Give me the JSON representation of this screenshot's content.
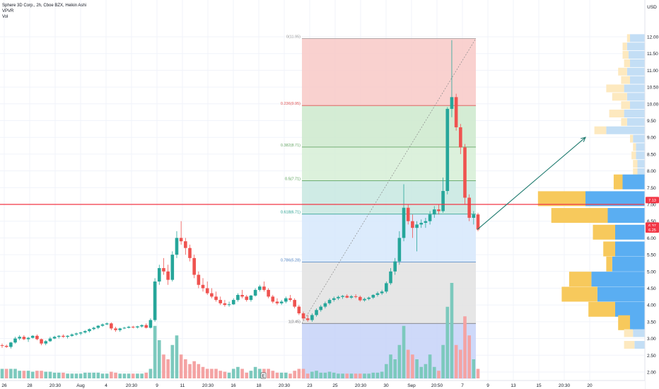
{
  "header": {
    "title": "Sphere 3D Corp., 2h, Cboe BZX, Heikin Ashi",
    "indicator1": "VPVR",
    "indicator2": "Vol"
  },
  "price_axis": {
    "currency": "USD",
    "ticks": [
      "12.00",
      "11.50",
      "11.00",
      "10.50",
      "10.00",
      "9.50",
      "9.00",
      "8.50",
      "8.00",
      "7.50",
      "7.00",
      "6.50",
      "6.00",
      "5.50",
      "5.00",
      "4.50",
      "4.00",
      "3.50",
      "3.00",
      "2.50",
      "2.00"
    ],
    "badges": [
      {
        "label": "7.13",
        "value": 7.13,
        "color": "#f23645"
      },
      {
        "label": "6.37",
        "value": 6.37,
        "color": "#f23645"
      },
      {
        "label": "6.25",
        "value": 6.25,
        "color": "#f23645"
      }
    ]
  },
  "time_axis": {
    "ticks": [
      "26",
      "28",
      "20:30",
      "Aug",
      "4",
      "20:30",
      "9",
      "11",
      "20:30",
      "16",
      "18",
      "20:30",
      "23",
      "25",
      "20:30",
      "30",
      "Sep",
      "20:50",
      "7",
      "9",
      "13",
      "15",
      "20:30",
      "20"
    ]
  },
  "colors": {
    "up": "#26a69a",
    "down": "#ef5350",
    "horizontal_line": "#f23645",
    "arrow": "#1e7a6e",
    "vp_up": "#5aaef2",
    "vp_down": "#f7c95c",
    "vp_up_light": "#c3def5",
    "vp_down_light": "#fde9bf"
  },
  "fib": {
    "levels": [
      {
        "label": "0(11.95)",
        "value": 11.95,
        "color": "#9b9b9b"
      },
      {
        "label": "0.236(9.95)",
        "value": 9.95,
        "color": "#e05252"
      },
      {
        "label": "0.382(8.71)",
        "value": 8.71,
        "color": "#66a666"
      },
      {
        "label": "0.5(7.71)",
        "value": 7.71,
        "color": "#4d9a4d"
      },
      {
        "label": "0.618(6.71)",
        "value": 6.71,
        "color": "#1e9a8a"
      },
      {
        "label": "0.786(5.28)",
        "value": 5.28,
        "color": "#4a7fc1"
      },
      {
        "label": "1(3.45)",
        "value": 3.45,
        "color": "#707070"
      }
    ],
    "zones": [
      {
        "from": 11.95,
        "to": 9.95,
        "color": "#f8c9c7"
      },
      {
        "from": 9.95,
        "to": 8.71,
        "color": "#cde9cd"
      },
      {
        "from": 8.71,
        "to": 7.71,
        "color": "#d6eed6"
      },
      {
        "from": 7.71,
        "to": 6.71,
        "color": "#c7e8e0"
      },
      {
        "from": 6.71,
        "to": 5.28,
        "color": "#d6e8fb"
      },
      {
        "from": 5.28,
        "to": 3.45,
        "color": "#e2e2e2"
      },
      {
        "from": 3.45,
        "to": 1.8,
        "color": "#c5d2f8"
      }
    ]
  },
  "chart_data": {
    "type": "candlestick",
    "title": "Sphere 3D Corp., 2h, Cboe BZX, Heikin Ashi",
    "yrange": [
      1.8,
      12.6
    ],
    "horizontal_line": 7.0,
    "candles": [
      [
        2.8,
        2.85,
        2.72,
        2.78
      ],
      [
        2.78,
        2.82,
        2.72,
        2.75
      ],
      [
        2.75,
        2.9,
        2.7,
        2.88
      ],
      [
        2.88,
        3.05,
        2.85,
        3.0
      ],
      [
        3.0,
        3.1,
        2.95,
        3.05
      ],
      [
        3.05,
        3.1,
        2.95,
        2.98
      ],
      [
        2.98,
        3.05,
        2.9,
        3.02
      ],
      [
        3.02,
        3.1,
        3.0,
        3.08
      ],
      [
        3.08,
        3.12,
        2.95,
        2.98
      ],
      [
        2.98,
        3.0,
        2.8,
        2.85
      ],
      [
        2.85,
        2.95,
        2.8,
        2.92
      ],
      [
        2.92,
        3.05,
        2.9,
        3.0
      ],
      [
        3.0,
        3.08,
        2.98,
        3.05
      ],
      [
        3.05,
        3.1,
        3.0,
        3.08
      ],
      [
        3.08,
        3.12,
        3.02,
        3.05
      ],
      [
        3.05,
        3.1,
        3.0,
        3.08
      ],
      [
        3.08,
        3.15,
        3.05,
        3.12
      ],
      [
        3.12,
        3.18,
        3.08,
        3.15
      ],
      [
        3.15,
        3.2,
        3.1,
        3.18
      ],
      [
        3.18,
        3.25,
        3.15,
        3.22
      ],
      [
        3.22,
        3.3,
        3.18,
        3.28
      ],
      [
        3.28,
        3.35,
        3.25,
        3.32
      ],
      [
        3.32,
        3.4,
        3.28,
        3.38
      ],
      [
        3.38,
        3.45,
        3.35,
        3.42
      ],
      [
        3.42,
        3.48,
        3.4,
        3.45
      ],
      [
        3.45,
        3.48,
        3.25,
        3.3
      ],
      [
        3.3,
        3.35,
        3.2,
        3.25
      ],
      [
        3.25,
        3.32,
        3.2,
        3.3
      ],
      [
        3.3,
        3.35,
        3.28,
        3.32
      ],
      [
        3.32,
        3.38,
        3.3,
        3.35
      ],
      [
        3.35,
        3.38,
        3.3,
        3.33
      ],
      [
        3.33,
        3.38,
        3.3,
        3.36
      ],
      [
        3.36,
        3.42,
        3.33,
        3.4
      ],
      [
        3.4,
        3.45,
        3.3,
        3.32
      ],
      [
        3.32,
        3.6,
        3.3,
        3.55
      ],
      [
        3.55,
        4.8,
        3.5,
        4.7
      ],
      [
        4.7,
        5.2,
        4.6,
        5.1
      ],
      [
        5.1,
        5.4,
        4.9,
        5.0
      ],
      [
        5.0,
        5.2,
        4.6,
        4.75
      ],
      [
        4.75,
        5.6,
        4.7,
        5.5
      ],
      [
        5.5,
        6.2,
        5.4,
        6.0
      ],
      [
        6.0,
        6.5,
        5.8,
        5.9
      ],
      [
        5.9,
        6.0,
        5.5,
        5.7
      ],
      [
        5.7,
        5.8,
        5.3,
        5.4
      ],
      [
        5.4,
        5.5,
        4.8,
        4.9
      ],
      [
        4.9,
        5.0,
        4.5,
        4.6
      ],
      [
        4.6,
        4.8,
        4.4,
        4.5
      ],
      [
        4.5,
        4.7,
        4.3,
        4.35
      ],
      [
        4.35,
        4.5,
        4.2,
        4.25
      ],
      [
        4.25,
        4.4,
        4.1,
        4.15
      ],
      [
        4.15,
        4.25,
        4.0,
        4.05
      ],
      [
        4.05,
        4.15,
        3.95,
        4.0
      ],
      [
        4.0,
        4.1,
        3.95,
        4.02
      ],
      [
        4.02,
        4.2,
        4.0,
        4.15
      ],
      [
        4.15,
        4.35,
        4.1,
        4.3
      ],
      [
        4.3,
        4.45,
        4.2,
        4.25
      ],
      [
        4.25,
        4.3,
        4.1,
        4.15
      ],
      [
        4.15,
        4.3,
        4.1,
        4.28
      ],
      [
        4.28,
        4.5,
        4.25,
        4.45
      ],
      [
        4.45,
        4.6,
        4.4,
        4.55
      ],
      [
        4.55,
        4.7,
        4.4,
        4.45
      ],
      [
        4.45,
        4.5,
        4.2,
        4.25
      ],
      [
        4.25,
        4.3,
        4.05,
        4.1
      ],
      [
        4.1,
        4.2,
        4.0,
        4.05
      ],
      [
        4.05,
        4.15,
        4.0,
        4.1
      ],
      [
        4.1,
        4.25,
        4.05,
        4.2
      ],
      [
        4.2,
        4.3,
        4.1,
        4.15
      ],
      [
        4.15,
        4.2,
        3.9,
        3.95
      ],
      [
        3.95,
        4.0,
        3.7,
        3.75
      ],
      [
        3.75,
        3.8,
        3.55,
        3.6
      ],
      [
        3.6,
        3.7,
        3.5,
        3.55
      ],
      [
        3.55,
        3.75,
        3.5,
        3.7
      ],
      [
        3.7,
        3.9,
        3.65,
        3.85
      ],
      [
        3.85,
        4.0,
        3.8,
        3.95
      ],
      [
        3.95,
        4.1,
        3.9,
        4.05
      ],
      [
        4.05,
        4.2,
        4.0,
        4.15
      ],
      [
        4.15,
        4.25,
        4.1,
        4.2
      ],
      [
        4.2,
        4.28,
        4.15,
        4.24
      ],
      [
        4.24,
        4.3,
        4.18,
        4.27
      ],
      [
        4.27,
        4.32,
        4.2,
        4.22
      ],
      [
        4.22,
        4.3,
        4.18,
        4.26
      ],
      [
        4.26,
        4.32,
        4.2,
        4.24
      ],
      [
        4.24,
        4.28,
        4.1,
        4.14
      ],
      [
        4.14,
        4.22,
        4.1,
        4.18
      ],
      [
        4.18,
        4.25,
        4.14,
        4.22
      ],
      [
        4.22,
        4.32,
        4.18,
        4.3
      ],
      [
        4.3,
        4.4,
        4.25,
        4.35
      ],
      [
        4.35,
        4.45,
        4.3,
        4.4
      ],
      [
        4.4,
        4.7,
        4.35,
        4.65
      ],
      [
        4.65,
        5.1,
        4.6,
        5.0
      ],
      [
        5.0,
        5.4,
        4.9,
        5.3
      ],
      [
        5.3,
        6.2,
        5.2,
        6.0
      ],
      [
        6.0,
        7.6,
        5.9,
        6.9
      ],
      [
        6.9,
        7.0,
        6.4,
        6.5
      ],
      [
        6.5,
        6.7,
        6.0,
        6.3
      ],
      [
        6.3,
        6.5,
        5.6,
        6.4
      ],
      [
        6.4,
        6.55,
        6.3,
        6.45
      ],
      [
        6.45,
        6.6,
        6.3,
        6.5
      ],
      [
        6.5,
        6.8,
        6.4,
        6.7
      ],
      [
        6.7,
        6.95,
        6.6,
        6.85
      ],
      [
        6.85,
        7.0,
        6.7,
        6.8
      ],
      [
        6.8,
        7.8,
        6.75,
        7.4
      ],
      [
        7.4,
        9.9,
        7.3,
        9.85
      ],
      [
        9.85,
        11.9,
        9.6,
        10.2
      ],
      [
        10.2,
        10.3,
        9.2,
        9.3
      ],
      [
        9.3,
        9.4,
        8.5,
        8.7
      ],
      [
        8.7,
        8.8,
        7.0,
        7.2
      ],
      [
        7.2,
        7.3,
        6.5,
        6.6
      ],
      [
        6.6,
        6.8,
        6.4,
        6.7
      ],
      [
        6.7,
        6.75,
        6.2,
        6.25
      ]
    ],
    "volume": [
      [
        0.1,
        1
      ],
      [
        0.1,
        0
      ],
      [
        0.1,
        1
      ],
      [
        0.1,
        1
      ],
      [
        0.08,
        1
      ],
      [
        0.08,
        0
      ],
      [
        0.08,
        1
      ],
      [
        0.07,
        1
      ],
      [
        0.08,
        0
      ],
      [
        0.08,
        0
      ],
      [
        0.07,
        1
      ],
      [
        0.07,
        1
      ],
      [
        0.06,
        1
      ],
      [
        0.06,
        1
      ],
      [
        0.06,
        0
      ],
      [
        0.05,
        1
      ],
      [
        0.05,
        1
      ],
      [
        0.05,
        1
      ],
      [
        0.05,
        1
      ],
      [
        0.06,
        1
      ],
      [
        0.06,
        1
      ],
      [
        0.06,
        1
      ],
      [
        0.06,
        1
      ],
      [
        0.05,
        1
      ],
      [
        0.05,
        1
      ],
      [
        0.07,
        0
      ],
      [
        0.06,
        0
      ],
      [
        0.05,
        1
      ],
      [
        0.05,
        1
      ],
      [
        0.05,
        1
      ],
      [
        0.05,
        0
      ],
      [
        0.05,
        1
      ],
      [
        0.05,
        1
      ],
      [
        0.06,
        0
      ],
      [
        0.1,
        1
      ],
      [
        0.55,
        1
      ],
      [
        0.4,
        1
      ],
      [
        0.25,
        0
      ],
      [
        0.2,
        0
      ],
      [
        0.35,
        1
      ],
      [
        0.45,
        1
      ],
      [
        0.25,
        0
      ],
      [
        0.2,
        0
      ],
      [
        0.15,
        0
      ],
      [
        0.18,
        0
      ],
      [
        0.15,
        0
      ],
      [
        0.12,
        0
      ],
      [
        0.1,
        0
      ],
      [
        0.1,
        0
      ],
      [
        0.1,
        0
      ],
      [
        0.08,
        0
      ],
      [
        0.07,
        0
      ],
      [
        0.06,
        1
      ],
      [
        0.1,
        1
      ],
      [
        0.12,
        1
      ],
      [
        0.1,
        0
      ],
      [
        0.06,
        0
      ],
      [
        0.08,
        1
      ],
      [
        0.12,
        1
      ],
      [
        0.1,
        1
      ],
      [
        0.1,
        0
      ],
      [
        0.1,
        0
      ],
      [
        0.08,
        0
      ],
      [
        0.06,
        0
      ],
      [
        0.06,
        1
      ],
      [
        0.06,
        1
      ],
      [
        0.05,
        0
      ],
      [
        0.08,
        0
      ],
      [
        0.1,
        0
      ],
      [
        0.1,
        0
      ],
      [
        0.05,
        0
      ],
      [
        0.07,
        1
      ],
      [
        0.08,
        1
      ],
      [
        0.06,
        1
      ],
      [
        0.06,
        1
      ],
      [
        0.07,
        1
      ],
      [
        0.06,
        1
      ],
      [
        0.05,
        1
      ],
      [
        0.05,
        1
      ],
      [
        0.05,
        0
      ],
      [
        0.05,
        1
      ],
      [
        0.05,
        0
      ],
      [
        0.05,
        0
      ],
      [
        0.05,
        1
      ],
      [
        0.05,
        1
      ],
      [
        0.06,
        1
      ],
      [
        0.06,
        1
      ],
      [
        0.07,
        1
      ],
      [
        0.15,
        1
      ],
      [
        0.25,
        1
      ],
      [
        0.2,
        1
      ],
      [
        0.35,
        1
      ],
      [
        0.55,
        1
      ],
      [
        0.3,
        0
      ],
      [
        0.25,
        0
      ],
      [
        0.2,
        1
      ],
      [
        0.12,
        1
      ],
      [
        0.15,
        1
      ],
      [
        0.25,
        1
      ],
      [
        0.12,
        1
      ],
      [
        0.08,
        0
      ],
      [
        0.35,
        1
      ],
      [
        0.75,
        1
      ],
      [
        1.0,
        1
      ],
      [
        0.35,
        0
      ],
      [
        0.3,
        0
      ],
      [
        0.65,
        0
      ],
      [
        0.45,
        0
      ],
      [
        0.2,
        1
      ],
      [
        0.1,
        0
      ]
    ],
    "volume_profile": [
      {
        "price": 11.95,
        "up": 0.1,
        "down": 0.02,
        "in_va": false
      },
      {
        "price": 11.7,
        "up": 0.12,
        "down": 0.03,
        "in_va": false
      },
      {
        "price": 11.45,
        "up": 0.11,
        "down": 0.04,
        "in_va": false
      },
      {
        "price": 11.2,
        "up": 0.1,
        "down": 0.04,
        "in_va": false
      },
      {
        "price": 10.95,
        "up": 0.12,
        "down": 0.06,
        "in_va": false
      },
      {
        "price": 10.7,
        "up": 0.1,
        "down": 0.06,
        "in_va": false
      },
      {
        "price": 10.45,
        "up": 0.14,
        "down": 0.12,
        "in_va": false
      },
      {
        "price": 10.2,
        "up": 0.12,
        "down": 0.1,
        "in_va": false
      },
      {
        "price": 9.95,
        "up": 0.1,
        "down": 0.06,
        "in_va": false
      },
      {
        "price": 9.7,
        "up": 0.14,
        "down": 0.1,
        "in_va": false
      },
      {
        "price": 9.45,
        "up": 0.12,
        "down": 0.04,
        "in_va": false
      },
      {
        "price": 9.2,
        "up": 0.26,
        "down": 0.08,
        "in_va": false
      },
      {
        "price": 8.95,
        "up": 0.08,
        "down": 0.02,
        "in_va": false
      },
      {
        "price": 8.7,
        "up": 0.06,
        "down": 0.02,
        "in_va": false
      },
      {
        "price": 8.45,
        "up": 0.06,
        "down": 0.03,
        "in_va": false
      },
      {
        "price": 8.2,
        "up": 0.05,
        "down": 0.03,
        "in_va": false
      },
      {
        "price": 7.95,
        "up": 0.05,
        "down": 0.03,
        "in_va": false
      },
      {
        "price": 7.65,
        "up": 0.15,
        "down": 0.06,
        "in_va": true
      },
      {
        "price": 7.15,
        "up": 0.4,
        "down": 0.32,
        "in_va": true
      },
      {
        "price": 6.65,
        "up": 0.25,
        "down": 0.38,
        "in_va": true
      },
      {
        "price": 6.15,
        "up": 0.2,
        "down": 0.15,
        "in_va": true
      },
      {
        "price": 5.65,
        "up": 0.2,
        "down": 0.08,
        "in_va": true
      },
      {
        "price": 5.2,
        "up": 0.22,
        "down": 0.04,
        "in_va": true
      },
      {
        "price": 4.75,
        "up": 0.36,
        "down": 0.15,
        "in_va": true
      },
      {
        "price": 4.3,
        "up": 0.32,
        "down": 0.24,
        "in_va": true
      },
      {
        "price": 3.85,
        "up": 0.2,
        "down": 0.18,
        "in_va": true
      },
      {
        "price": 3.45,
        "up": 0.1,
        "down": 0.08,
        "in_va": true
      },
      {
        "price": 3.15,
        "up": 0.08,
        "down": 0.06,
        "in_va": false
      },
      {
        "price": 2.8,
        "up": 0.07,
        "down": 0.07,
        "in_va": false
      }
    ],
    "marker": "E"
  }
}
